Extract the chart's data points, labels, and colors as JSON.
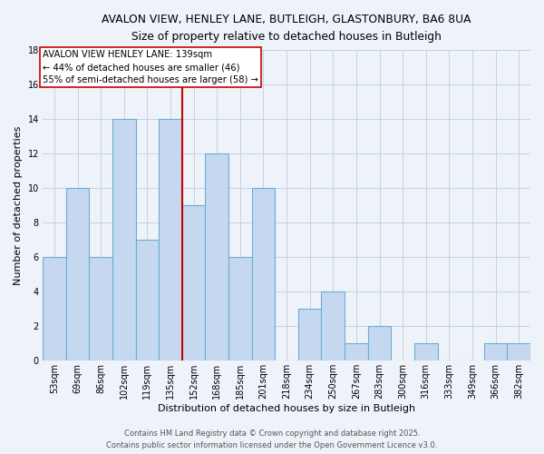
{
  "title1": "AVALON VIEW, HENLEY LANE, BUTLEIGH, GLASTONBURY, BA6 8UA",
  "title2": "Size of property relative to detached houses in Butleigh",
  "xlabel": "Distribution of detached houses by size in Butleigh",
  "ylabel": "Number of detached properties",
  "bar_labels": [
    "53sqm",
    "69sqm",
    "86sqm",
    "102sqm",
    "119sqm",
    "135sqm",
    "152sqm",
    "168sqm",
    "185sqm",
    "201sqm",
    "218sqm",
    "234sqm",
    "250sqm",
    "267sqm",
    "283sqm",
    "300sqm",
    "316sqm",
    "333sqm",
    "349sqm",
    "366sqm",
    "382sqm"
  ],
  "bar_values": [
    6,
    10,
    6,
    14,
    7,
    14,
    9,
    12,
    6,
    10,
    0,
    3,
    4,
    1,
    2,
    0,
    1,
    0,
    0,
    1,
    1
  ],
  "bar_color": "#c5d8f0",
  "bar_edge_color": "#6baed6",
  "bg_color": "#eef2f9",
  "grid_color": "#c0cce0",
  "vline_x": 5.5,
  "vline_color": "#cc0000",
  "annotation_text": "AVALON VIEW HENLEY LANE: 139sqm\n← 44% of detached houses are smaller (46)\n55% of semi-detached houses are larger (58) →",
  "annotation_box_color": "#ffffff",
  "annotation_box_edge": "#cc0000",
  "footer1": "Contains HM Land Registry data © Crown copyright and database right 2025.",
  "footer2": "Contains public sector information licensed under the Open Government Licence v3.0.",
  "ylim": [
    0,
    18
  ],
  "yticks": [
    0,
    2,
    4,
    6,
    8,
    10,
    12,
    14,
    16,
    18
  ],
  "title1_fontsize": 8.8,
  "title2_fontsize": 8.5,
  "xlabel_fontsize": 8.0,
  "ylabel_fontsize": 8.0,
  "tick_fontsize": 7.0,
  "footer_fontsize": 6.0,
  "annotation_fontsize": 7.2
}
